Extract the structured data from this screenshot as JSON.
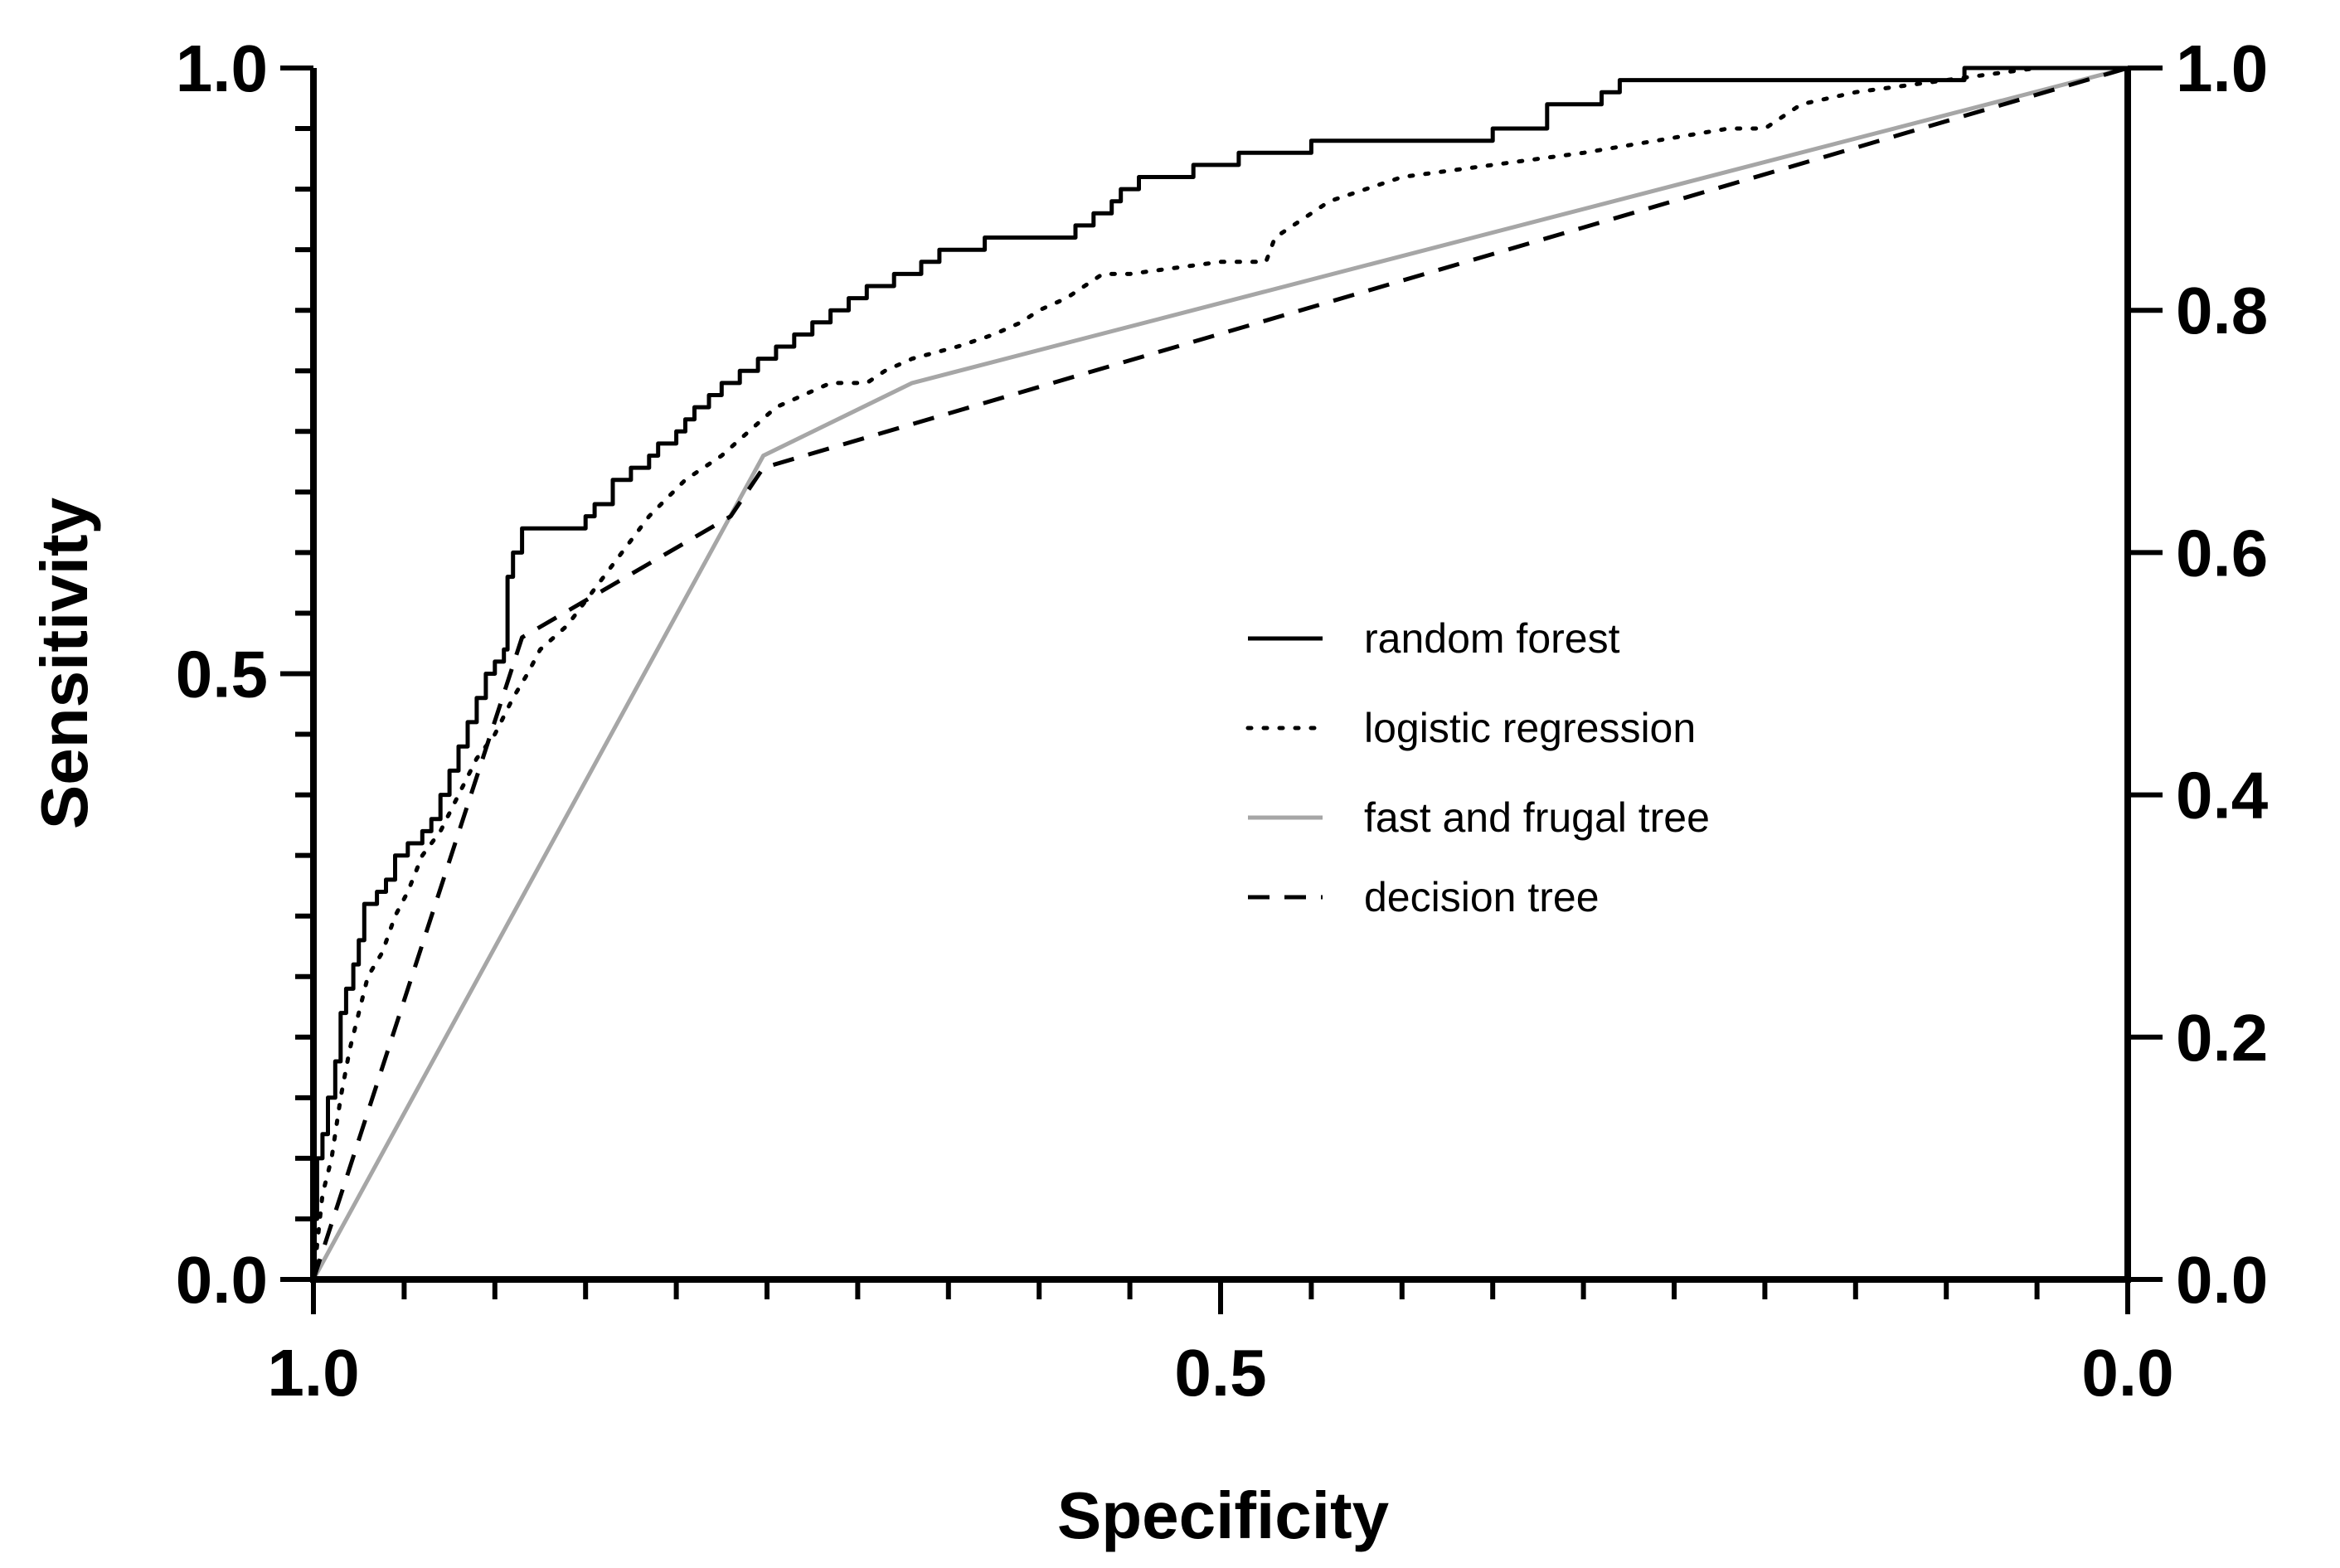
{
  "chart_data": {
    "type": "line",
    "title": "",
    "xlabel": "Specificity",
    "ylabel": "Sensitivity",
    "xlim": [
      1.0,
      0.0
    ],
    "ylim": [
      0.0,
      1.0
    ],
    "grid": false,
    "legend_position": "center-right",
    "x_ticks": [
      {
        "value": 1.0,
        "label": "1.0"
      },
      {
        "value": 0.5,
        "label": "0.5"
      },
      {
        "value": 0.0,
        "label": "0.0"
      }
    ],
    "y_left_ticks": [
      {
        "value": 0.0,
        "label": "0.0"
      },
      {
        "value": 0.5,
        "label": "0.5"
      },
      {
        "value": 1.0,
        "label": "1.0"
      }
    ],
    "y_right_ticks": [
      {
        "value": 0.0,
        "label": "0.0"
      },
      {
        "value": 0.2,
        "label": "0.2"
      },
      {
        "value": 0.4,
        "label": "0.4"
      },
      {
        "value": 0.6,
        "label": "0.6"
      },
      {
        "value": 0.8,
        "label": "0.8"
      },
      {
        "value": 1.0,
        "label": "1.0"
      }
    ],
    "series": [
      {
        "name": "random forest",
        "color": "#000000",
        "style": "solid",
        "points": [
          [
            1.0,
            0.0
          ],
          [
            1.0,
            0.05
          ],
          [
            0.998,
            0.1
          ],
          [
            0.995,
            0.12
          ],
          [
            0.992,
            0.15
          ],
          [
            0.988,
            0.18
          ],
          [
            0.985,
            0.22
          ],
          [
            0.982,
            0.24
          ],
          [
            0.978,
            0.26
          ],
          [
            0.975,
            0.28
          ],
          [
            0.972,
            0.31
          ],
          [
            0.965,
            0.32
          ],
          [
            0.96,
            0.33
          ],
          [
            0.955,
            0.35
          ],
          [
            0.948,
            0.36
          ],
          [
            0.94,
            0.37
          ],
          [
            0.935,
            0.38
          ],
          [
            0.93,
            0.4
          ],
          [
            0.925,
            0.42
          ],
          [
            0.92,
            0.44
          ],
          [
            0.915,
            0.46
          ],
          [
            0.91,
            0.48
          ],
          [
            0.905,
            0.5
          ],
          [
            0.9,
            0.51
          ],
          [
            0.895,
            0.52
          ],
          [
            0.893,
            0.58
          ],
          [
            0.89,
            0.6
          ],
          [
            0.885,
            0.62
          ],
          [
            0.862,
            0.62
          ],
          [
            0.85,
            0.63
          ],
          [
            0.845,
            0.64
          ],
          [
            0.835,
            0.66
          ],
          [
            0.825,
            0.67
          ],
          [
            0.815,
            0.68
          ],
          [
            0.81,
            0.69
          ],
          [
            0.8,
            0.7
          ],
          [
            0.795,
            0.71
          ],
          [
            0.79,
            0.72
          ],
          [
            0.782,
            0.73
          ],
          [
            0.775,
            0.74
          ],
          [
            0.765,
            0.75
          ],
          [
            0.755,
            0.76
          ],
          [
            0.745,
            0.77
          ],
          [
            0.735,
            0.78
          ],
          [
            0.725,
            0.79
          ],
          [
            0.715,
            0.8
          ],
          [
            0.705,
            0.81
          ],
          [
            0.695,
            0.82
          ],
          [
            0.68,
            0.83
          ],
          [
            0.665,
            0.84
          ],
          [
            0.655,
            0.85
          ],
          [
            0.64,
            0.85
          ],
          [
            0.63,
            0.86
          ],
          [
            0.6,
            0.86
          ],
          [
            0.58,
            0.87
          ],
          [
            0.57,
            0.88
          ],
          [
            0.56,
            0.89
          ],
          [
            0.555,
            0.9
          ],
          [
            0.545,
            0.91
          ],
          [
            0.53,
            0.91
          ],
          [
            0.515,
            0.92
          ],
          [
            0.49,
            0.93
          ],
          [
            0.45,
            0.94
          ],
          [
            0.4,
            0.94
          ],
          [
            0.35,
            0.95
          ],
          [
            0.33,
            0.95
          ],
          [
            0.32,
            0.97
          ],
          [
            0.29,
            0.98
          ],
          [
            0.28,
            0.99
          ],
          [
            0.25,
            0.99
          ],
          [
            0.15,
            0.99
          ],
          [
            0.09,
            1.0
          ],
          [
            0.0,
            1.0
          ]
        ]
      },
      {
        "name": "logistic regression",
        "color": "#000000",
        "style": "dotted",
        "points": [
          [
            1.0,
            0.0
          ],
          [
            0.995,
            0.07
          ],
          [
            0.99,
            0.1
          ],
          [
            0.985,
            0.15
          ],
          [
            0.98,
            0.19
          ],
          [
            0.975,
            0.22
          ],
          [
            0.97,
            0.25
          ],
          [
            0.962,
            0.27
          ],
          [
            0.955,
            0.3
          ],
          [
            0.948,
            0.32
          ],
          [
            0.94,
            0.35
          ],
          [
            0.93,
            0.37
          ],
          [
            0.92,
            0.4
          ],
          [
            0.91,
            0.43
          ],
          [
            0.9,
            0.45
          ],
          [
            0.89,
            0.48
          ],
          [
            0.882,
            0.5
          ],
          [
            0.875,
            0.52
          ],
          [
            0.86,
            0.54
          ],
          [
            0.845,
            0.57
          ],
          [
            0.83,
            0.6
          ],
          [
            0.815,
            0.63
          ],
          [
            0.795,
            0.66
          ],
          [
            0.775,
            0.68
          ],
          [
            0.76,
            0.7
          ],
          [
            0.745,
            0.72
          ],
          [
            0.73,
            0.73
          ],
          [
            0.715,
            0.74
          ],
          [
            0.695,
            0.74
          ],
          [
            0.685,
            0.75
          ],
          [
            0.67,
            0.76
          ],
          [
            0.645,
            0.77
          ],
          [
            0.625,
            0.78
          ],
          [
            0.61,
            0.79
          ],
          [
            0.6,
            0.8
          ],
          [
            0.585,
            0.81
          ],
          [
            0.565,
            0.83
          ],
          [
            0.55,
            0.83
          ],
          [
            0.5,
            0.84
          ],
          [
            0.475,
            0.84
          ],
          [
            0.47,
            0.86
          ],
          [
            0.45,
            0.88
          ],
          [
            0.44,
            0.89
          ],
          [
            0.42,
            0.9
          ],
          [
            0.4,
            0.91
          ],
          [
            0.35,
            0.92
          ],
          [
            0.3,
            0.93
          ],
          [
            0.26,
            0.94
          ],
          [
            0.22,
            0.95
          ],
          [
            0.2,
            0.95
          ],
          [
            0.18,
            0.97
          ],
          [
            0.15,
            0.98
          ],
          [
            0.1,
            0.99
          ],
          [
            0.05,
            1.0
          ],
          [
            0.0,
            1.0
          ]
        ]
      },
      {
        "name": "fast and frugal tree",
        "color": "#a6a6a6",
        "style": "solid",
        "points": [
          [
            1.0,
            0.0
          ],
          [
            0.752,
            0.68
          ],
          [
            0.67,
            0.74
          ],
          [
            0.0,
            1.0
          ]
        ]
      },
      {
        "name": "decision tree",
        "color": "#000000",
        "style": "dashed",
        "points": [
          [
            1.0,
            0.0
          ],
          [
            0.885,
            0.53
          ],
          [
            0.77,
            0.63
          ],
          [
            0.752,
            0.67
          ],
          [
            0.0,
            1.0
          ]
        ]
      }
    ]
  }
}
